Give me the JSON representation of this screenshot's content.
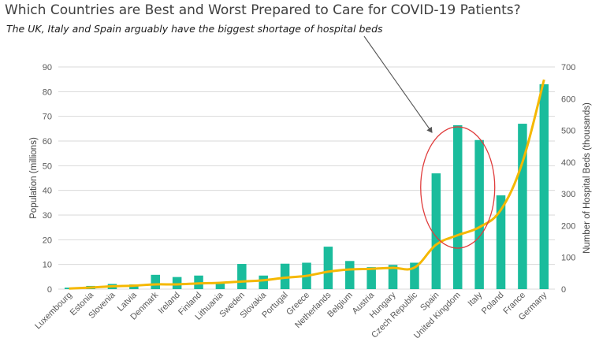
{
  "title": "Which Countries are Best and Worst Prepared to Care for COVID-19 Patients?",
  "subtitle": "The UK, Italy and Spain arguably have the biggest shortage of hospital beds",
  "chart_data": {
    "type": "bar",
    "categories": [
      "Luxembourg",
      "Estonia",
      "Slovenia",
      "Latvia",
      "Denmark",
      "Ireland",
      "Finland",
      "Lithuania",
      "Sweden",
      "Slovakia",
      "Portugal",
      "Greece",
      "Netherlands",
      "Belgium",
      "Austria",
      "Hungary",
      "Czech Republic",
      "Spain",
      "United Kingdom",
      "Italy",
      "Poland",
      "France",
      "Germany"
    ],
    "series": [
      {
        "axis": "left",
        "color": "#1ABC9C",
        "values": [
          0.6,
          1.3,
          2.1,
          1.9,
          5.8,
          4.9,
          5.5,
          2.8,
          10.2,
          5.5,
          10.3,
          10.7,
          17.2,
          11.4,
          8.9,
          9.8,
          10.7,
          46.9,
          66.4,
          60.4,
          38.0,
          67.0,
          83.0
        ]
      },
      {
        "axis": "right",
        "type": "line",
        "color": "#F5B800",
        "values": [
          2,
          5,
          9,
          11,
          15,
          15,
          18,
          20,
          24,
          28,
          36,
          42,
          55,
          62,
          64,
          67,
          68,
          140,
          170,
          195,
          250,
          400,
          660
        ]
      }
    ],
    "ylabel": "Population (millions)",
    "y2label": "Number of Hospital Beds (thousands)",
    "ylim": [
      0,
      90
    ],
    "y2lim": [
      0,
      700
    ],
    "yticks": [
      "0",
      "10",
      "20",
      "30",
      "40",
      "50",
      "60",
      "70",
      "80",
      "90"
    ],
    "y2ticks": [
      "0",
      "100",
      "200",
      "300",
      "400",
      "500",
      "600",
      "700"
    ],
    "grid": true,
    "annotation": "ellipse highlighting Spain, United Kingdom and Italy with an arrow from the subtitle",
    "colors": {
      "bar": "#1ABC9C",
      "line": "#F5B800",
      "ellipse": "#E03C3C",
      "grid": "#D9D9D9"
    }
  }
}
